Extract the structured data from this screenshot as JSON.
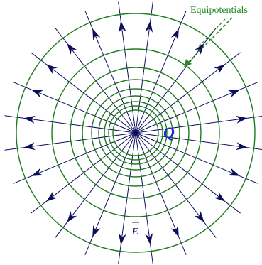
{
  "labels": {
    "equipotentials": "Equipotentials",
    "charge": "Q",
    "field": "E"
  },
  "field": {
    "line_count": 24,
    "direction": "outward",
    "color": "#0d0d5e"
  },
  "equipotentials": {
    "count": 9,
    "color": "#1f7a1f"
  },
  "pointer": {
    "style": "dashed-arrow",
    "color": "#2a8a2a"
  },
  "colors": {
    "background": "#ffffff",
    "label_green": "#1f8a1f",
    "charge_blue": "#1a2fbf",
    "field_label": "#1a1a5e"
  }
}
